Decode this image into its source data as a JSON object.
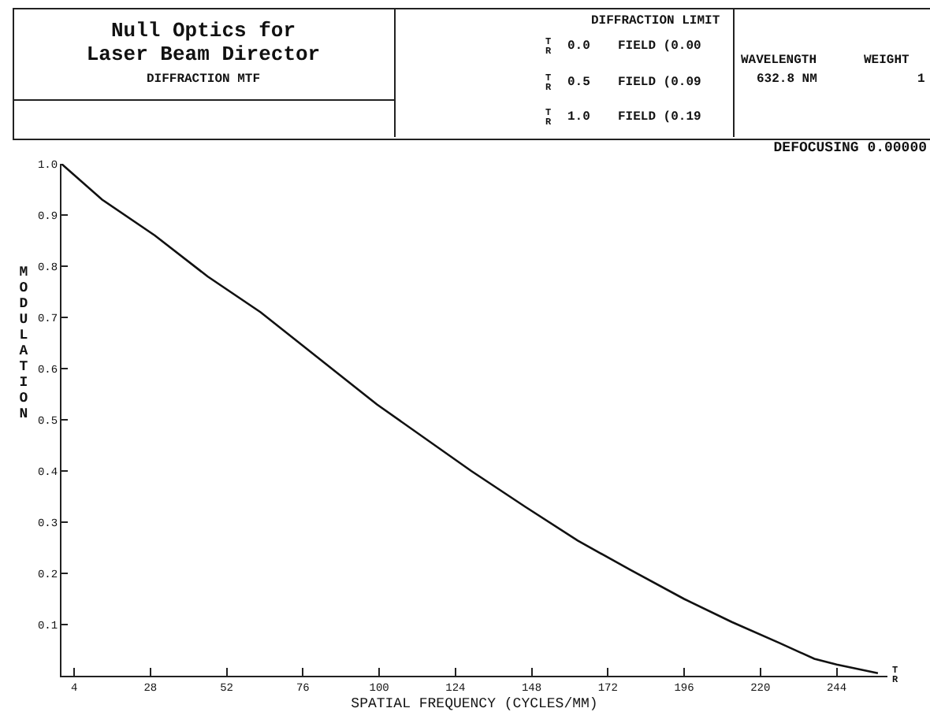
{
  "chart_data": {
    "type": "line",
    "title": "Null Optics for\nLaser Beam Director",
    "subtitle": "DIFFRACTION MTF",
    "xlabel": "SPATIAL FREQUENCY (CYCLES/MM)",
    "ylabel": "MODULATION",
    "annotations": [
      "DIFFRACTION LIMIT",
      "T\nR",
      "0.0",
      "FIELD (0.00",
      "T\nR",
      "0.5",
      "FIELD (0.09",
      "T\nR",
      "1.0",
      "FIELD (0.19",
      "WAVELENGTH",
      "632.8 NM",
      "WEIGHT",
      "1",
      "DEFOCUSING 0.00000",
      "T\nR"
    ],
    "x": [
      0,
      12.8,
      29.4,
      46,
      62.7,
      99.3,
      129,
      146,
      162.5,
      179,
      196,
      211,
      226,
      237,
      244,
      257
    ],
    "series": [
      {
        "color": "#111111",
        "values": [
          1.0,
          0.93,
          0.86,
          0.78,
          0.71,
          0.53,
          0.4,
          0.33,
          0.264,
          0.207,
          0.15,
          0.105,
          0.064,
          0.033,
          0.022,
          0.005
        ]
      }
    ],
    "xlim": [
      0,
      260
    ],
    "xticks": [
      4,
      28,
      52,
      76,
      100,
      124,
      148,
      172,
      196,
      220,
      244
    ],
    "ylim": [
      0,
      1.0
    ],
    "yticks": [
      0.1,
      0.2,
      0.3,
      0.4,
      0.5,
      0.6,
      0.7,
      0.8,
      0.9,
      {
        "value": 1.0,
        "label": "1.0"
      }
    ],
    "grid": false,
    "marker": "none",
    "line_style": "solid"
  }
}
